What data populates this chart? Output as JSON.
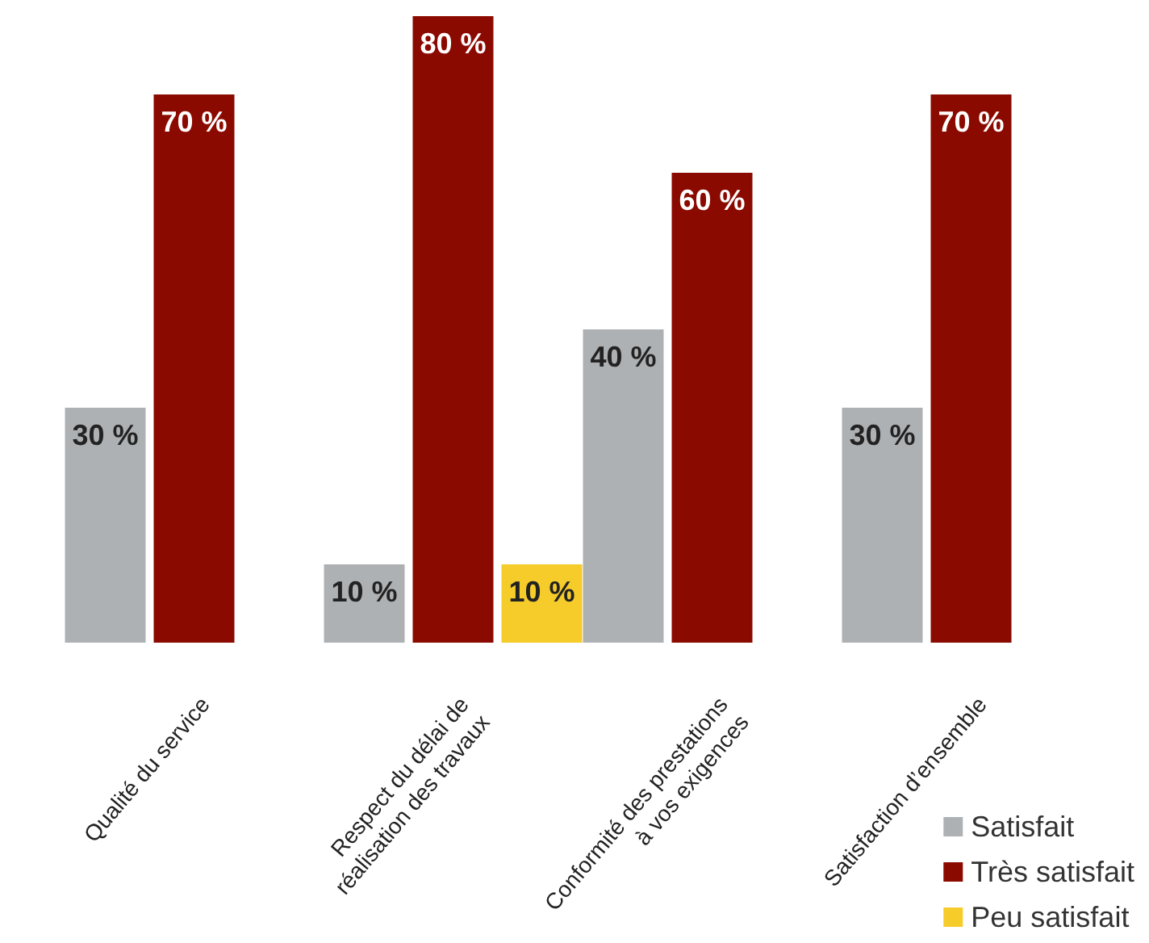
{
  "chart_data": {
    "type": "bar",
    "categories": [
      "Qualité du service",
      "Respect du délai de\nréalisation des travaux",
      "Conformité des prestations\nà vos exigences",
      "Satisfaction d’ensemble"
    ],
    "series": [
      {
        "name": "Satisfait",
        "color": "#aeb1b4",
        "values": [
          30,
          10,
          40,
          30
        ],
        "value_labels": [
          "30 %",
          "10 %",
          "40 %",
          "30 %"
        ]
      },
      {
        "name": "Très satisfait",
        "color": "#8b0a00",
        "values": [
          70,
          80,
          60,
          70
        ],
        "value_labels": [
          "70 %",
          "80 %",
          "60 %",
          "70 %"
        ]
      },
      {
        "name": "Peu satisfait",
        "color": "#f5cc2a",
        "values": [
          null,
          10,
          null,
          null
        ],
        "value_labels": [
          null,
          "10 %",
          null,
          null
        ]
      }
    ],
    "legend": "bottom right"
  }
}
